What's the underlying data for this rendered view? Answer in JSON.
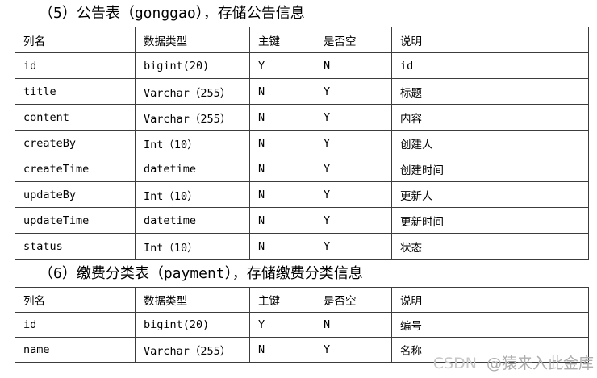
{
  "page": {
    "background": "#ffffff",
    "border_color": "#3c3c3c",
    "text_color": "#000000"
  },
  "sections": [
    {
      "heading": "（5）公告表（gonggao），存储公告信息",
      "columns": [
        "列名",
        "数据类型",
        "主键",
        "是否空",
        "说明"
      ],
      "rows": [
        [
          "id",
          "bigint(20)",
          "Y",
          "N",
          "id"
        ],
        [
          "title",
          "Varchar（255）",
          "N",
          "Y",
          "标题"
        ],
        [
          "content",
          "Varchar（255）",
          "N",
          "Y",
          "内容"
        ],
        [
          "createBy",
          "Int（10）",
          "N",
          "Y",
          "创建人"
        ],
        [
          "createTime",
          "datetime",
          "N",
          "Y",
          "创建时间"
        ],
        [
          "updateBy",
          "Int（10）",
          "N",
          "Y",
          "更新人"
        ],
        [
          "updateTime",
          "datetime",
          "N",
          "Y",
          "更新时间"
        ],
        [
          "status",
          "Int（10）",
          "N",
          "Y",
          "状态"
        ]
      ]
    },
    {
      "heading": "（6）缴费分类表（payment），存储缴费分类信息",
      "columns": [
        "列名",
        "数据类型",
        "主键",
        "是否空",
        "说明"
      ],
      "rows": [
        [
          "id",
          "bigint(20)",
          "Y",
          "N",
          "编号"
        ],
        [
          "name",
          "Varchar（255）",
          "N",
          "Y",
          "名称"
        ]
      ]
    }
  ],
  "watermark": {
    "brand": "CSDN",
    "handle": "@猿来入此金库",
    "brand_color": "#c7c7c7",
    "handle_color": "#adadad"
  }
}
